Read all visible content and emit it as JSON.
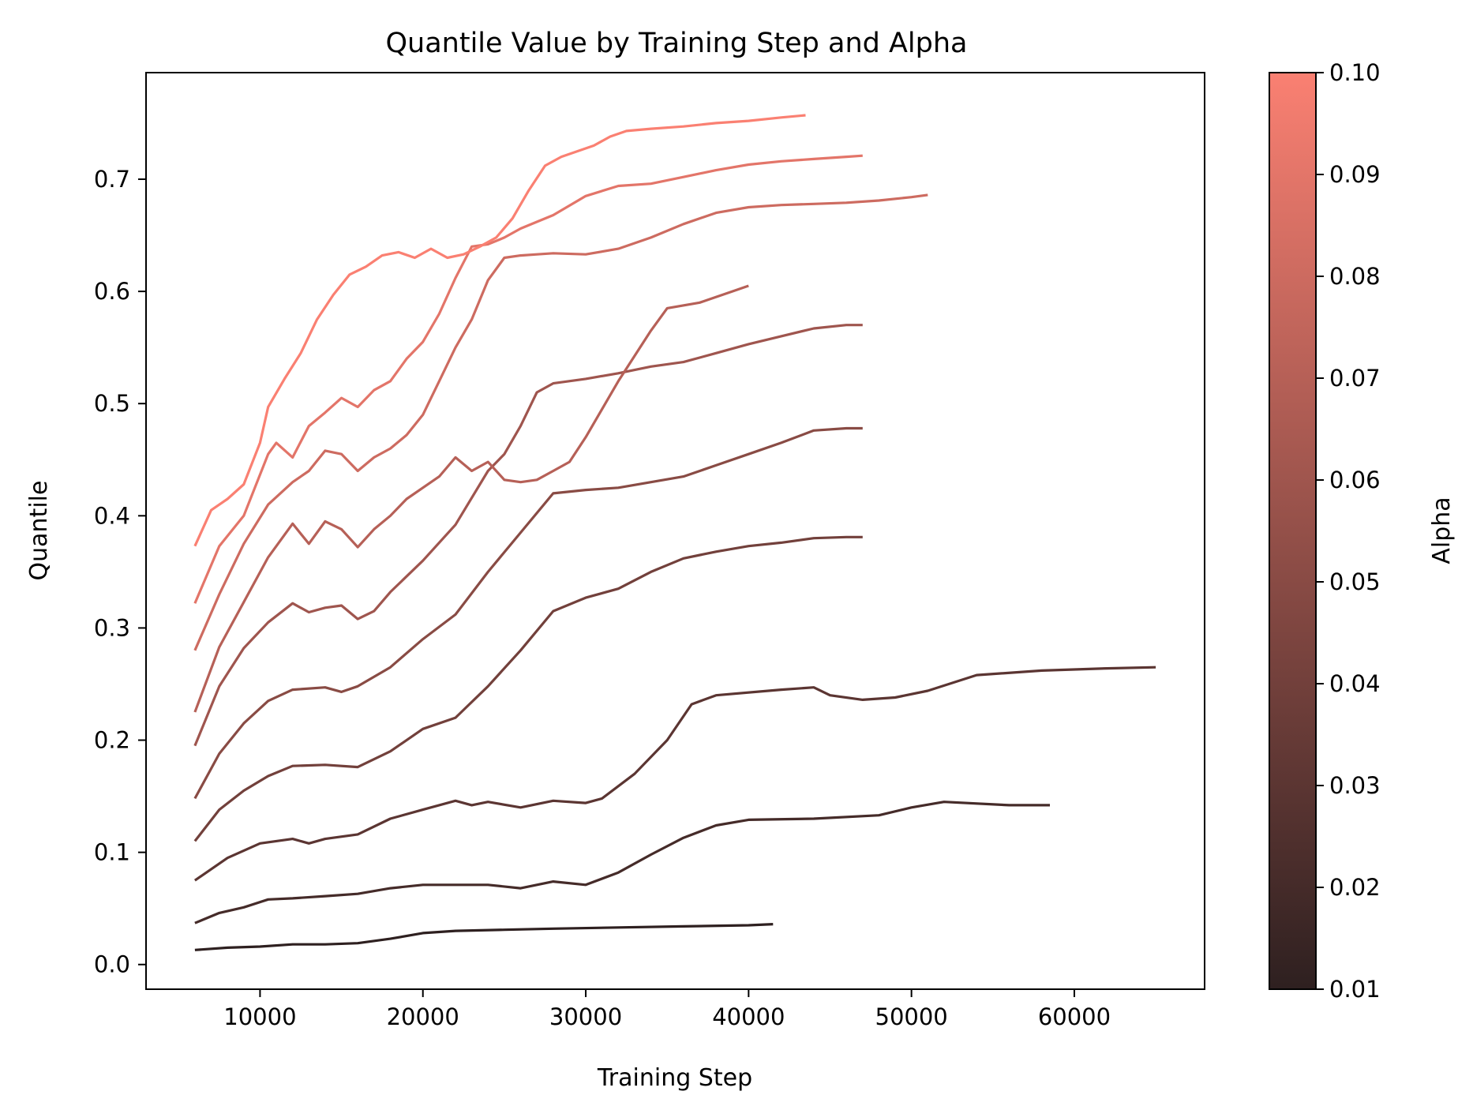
{
  "chart_data": {
    "type": "line",
    "title": "Quantile Value by Training Step and Alpha",
    "xlabel": "Training Step",
    "ylabel": "Quantile",
    "xlim": [
      3000,
      68000
    ],
    "ylim": [
      -0.022,
      0.795
    ],
    "xticks": [
      10000,
      20000,
      30000,
      40000,
      50000,
      60000
    ],
    "yticks": [
      0.0,
      0.1,
      0.2,
      0.3,
      0.4,
      0.5,
      0.6,
      0.7
    ],
    "ytick_labels": [
      "0.0",
      "0.1",
      "0.2",
      "0.3",
      "0.4",
      "0.5",
      "0.6",
      "0.7"
    ],
    "xtick_labels": [
      "10000",
      "20000",
      "30000",
      "40000",
      "50000",
      "60000"
    ],
    "grid": false,
    "colorbar": {
      "label": "Alpha",
      "min": 0.01,
      "max": 0.1,
      "ticks": [
        "0.01",
        "0.02",
        "0.03",
        "0.04",
        "0.05",
        "0.06",
        "0.07",
        "0.08",
        "0.09",
        "0.10"
      ],
      "color_low": "#2e2020",
      "color_high": "#fa8072"
    },
    "series": [
      {
        "alpha": 0.01,
        "x": [
          6000,
          8000,
          10000,
          12000,
          14000,
          16000,
          18000,
          20000,
          22000,
          25000,
          28000,
          32000,
          36000,
          40000,
          41500
        ],
        "y": [
          0.013,
          0.015,
          0.016,
          0.018,
          0.018,
          0.019,
          0.023,
          0.028,
          0.03,
          0.031,
          0.032,
          0.033,
          0.034,
          0.035,
          0.036
        ]
      },
      {
        "alpha": 0.02,
        "x": [
          6000,
          7500,
          9000,
          10500,
          12000,
          14000,
          16000,
          18000,
          20000,
          22000,
          24000,
          26000,
          28000,
          30000,
          32000,
          34000,
          36000,
          38000,
          40000,
          44000,
          48000,
          50000,
          52000,
          56000,
          58500
        ],
        "y": [
          0.037,
          0.046,
          0.051,
          0.058,
          0.059,
          0.061,
          0.063,
          0.068,
          0.071,
          0.071,
          0.071,
          0.068,
          0.074,
          0.071,
          0.082,
          0.098,
          0.113,
          0.124,
          0.129,
          0.13,
          0.133,
          0.14,
          0.145,
          0.142,
          0.142
        ]
      },
      {
        "alpha": 0.03,
        "x": [
          6000,
          8000,
          10000,
          12000,
          13000,
          14000,
          16000,
          18000,
          20000,
          22000,
          23000,
          24000,
          26000,
          28000,
          30000,
          31000,
          33000,
          35000,
          36500,
          38000,
          42000,
          44000,
          45000,
          47000,
          49000,
          51000,
          54000,
          58000,
          62000,
          65000
        ],
        "y": [
          0.075,
          0.095,
          0.108,
          0.112,
          0.108,
          0.112,
          0.116,
          0.13,
          0.138,
          0.146,
          0.142,
          0.145,
          0.14,
          0.146,
          0.144,
          0.148,
          0.17,
          0.2,
          0.232,
          0.24,
          0.245,
          0.247,
          0.24,
          0.236,
          0.238,
          0.244,
          0.258,
          0.262,
          0.264,
          0.265
        ]
      },
      {
        "alpha": 0.04,
        "x": [
          6000,
          7500,
          9000,
          10500,
          12000,
          14000,
          16000,
          18000,
          20000,
          22000,
          24000,
          26000,
          28000,
          30000,
          32000,
          34000,
          36000,
          38000,
          40000,
          42000,
          44000,
          46000,
          47000
        ],
        "y": [
          0.11,
          0.138,
          0.155,
          0.168,
          0.177,
          0.178,
          0.176,
          0.19,
          0.21,
          0.22,
          0.248,
          0.28,
          0.315,
          0.327,
          0.335,
          0.35,
          0.362,
          0.368,
          0.373,
          0.376,
          0.38,
          0.381,
          0.381
        ]
      },
      {
        "alpha": 0.05,
        "x": [
          6000,
          7500,
          9000,
          10500,
          12000,
          14000,
          15000,
          16000,
          18000,
          20000,
          22000,
          24000,
          26000,
          28000,
          30000,
          32000,
          34000,
          36000,
          38000,
          40000,
          42000,
          44000,
          46000,
          47000
        ],
        "y": [
          0.148,
          0.188,
          0.215,
          0.235,
          0.245,
          0.247,
          0.243,
          0.248,
          0.265,
          0.29,
          0.312,
          0.35,
          0.385,
          0.42,
          0.423,
          0.425,
          0.43,
          0.435,
          0.445,
          0.455,
          0.465,
          0.476,
          0.478,
          0.478
        ]
      },
      {
        "alpha": 0.06,
        "x": [
          6000,
          7500,
          9000,
          10500,
          12000,
          13000,
          14000,
          15000,
          16000,
          17000,
          18000,
          20000,
          22000,
          24000,
          25000,
          26000,
          27000,
          28000,
          30000,
          32000,
          34000,
          36000,
          38000,
          40000,
          42000,
          44000,
          46000,
          47000
        ],
        "y": [
          0.195,
          0.248,
          0.282,
          0.305,
          0.322,
          0.314,
          0.318,
          0.32,
          0.308,
          0.315,
          0.332,
          0.36,
          0.392,
          0.44,
          0.455,
          0.48,
          0.51,
          0.518,
          0.522,
          0.527,
          0.533,
          0.537,
          0.545,
          0.553,
          0.56,
          0.567,
          0.57,
          0.57
        ]
      },
      {
        "alpha": 0.07,
        "x": [
          6000,
          7500,
          9000,
          10500,
          12000,
          13000,
          14000,
          15000,
          16000,
          17000,
          18000,
          19000,
          20000,
          21000,
          22000,
          23000,
          24000,
          25000,
          26000,
          27000,
          28000,
          29000,
          30000,
          32000,
          34000,
          35000,
          37000,
          39000,
          40000
        ],
        "y": [
          0.225,
          0.283,
          0.323,
          0.363,
          0.393,
          0.375,
          0.395,
          0.388,
          0.372,
          0.388,
          0.4,
          0.415,
          0.425,
          0.435,
          0.452,
          0.44,
          0.448,
          0.432,
          0.43,
          0.432,
          0.44,
          0.448,
          0.47,
          0.52,
          0.565,
          0.585,
          0.59,
          0.6,
          0.605
        ]
      },
      {
        "alpha": 0.08,
        "x": [
          6000,
          7500,
          9000,
          10500,
          12000,
          13000,
          14000,
          15000,
          16000,
          17000,
          18000,
          19000,
          20000,
          21000,
          22000,
          23000,
          24000,
          25000,
          26000,
          27000,
          28000,
          30000,
          32000,
          34000,
          36000,
          38000,
          40000,
          42000,
          44000,
          46000,
          48000,
          50000,
          51000
        ],
        "y": [
          0.28,
          0.33,
          0.375,
          0.41,
          0.43,
          0.44,
          0.458,
          0.455,
          0.44,
          0.452,
          0.46,
          0.472,
          0.49,
          0.52,
          0.55,
          0.575,
          0.61,
          0.63,
          0.632,
          0.633,
          0.634,
          0.633,
          0.638,
          0.648,
          0.66,
          0.67,
          0.675,
          0.677,
          0.678,
          0.679,
          0.681,
          0.684,
          0.686
        ]
      },
      {
        "alpha": 0.09,
        "x": [
          6000,
          7500,
          9000,
          10500,
          11000,
          12000,
          13000,
          14000,
          15000,
          16000,
          17000,
          18000,
          19000,
          20000,
          21000,
          22000,
          23000,
          24000,
          25000,
          26000,
          27000,
          28000,
          30000,
          32000,
          34000,
          36000,
          38000,
          40000,
          42000,
          44000,
          46000,
          47000
        ],
        "y": [
          0.322,
          0.373,
          0.4,
          0.455,
          0.465,
          0.452,
          0.48,
          0.492,
          0.505,
          0.497,
          0.512,
          0.52,
          0.54,
          0.555,
          0.58,
          0.612,
          0.64,
          0.642,
          0.648,
          0.656,
          0.662,
          0.668,
          0.685,
          0.694,
          0.696,
          0.702,
          0.708,
          0.713,
          0.716,
          0.718,
          0.72,
          0.721
        ]
      },
      {
        "alpha": 0.1,
        "x": [
          6000,
          7000,
          8000,
          9000,
          10000,
          10500,
          11500,
          12500,
          13500,
          14500,
          15500,
          16500,
          17500,
          18500,
          19500,
          20500,
          21500,
          22500,
          23500,
          24500,
          25500,
          26500,
          27500,
          28500,
          29500,
          30500,
          31500,
          32500,
          34000,
          36000,
          38000,
          40000,
          42000,
          43500
        ],
        "y": [
          0.373,
          0.405,
          0.415,
          0.428,
          0.465,
          0.497,
          0.522,
          0.545,
          0.575,
          0.597,
          0.615,
          0.622,
          0.632,
          0.635,
          0.63,
          0.638,
          0.63,
          0.633,
          0.64,
          0.648,
          0.665,
          0.69,
          0.712,
          0.72,
          0.725,
          0.73,
          0.738,
          0.743,
          0.745,
          0.747,
          0.75,
          0.752,
          0.755,
          0.757
        ]
      }
    ]
  }
}
